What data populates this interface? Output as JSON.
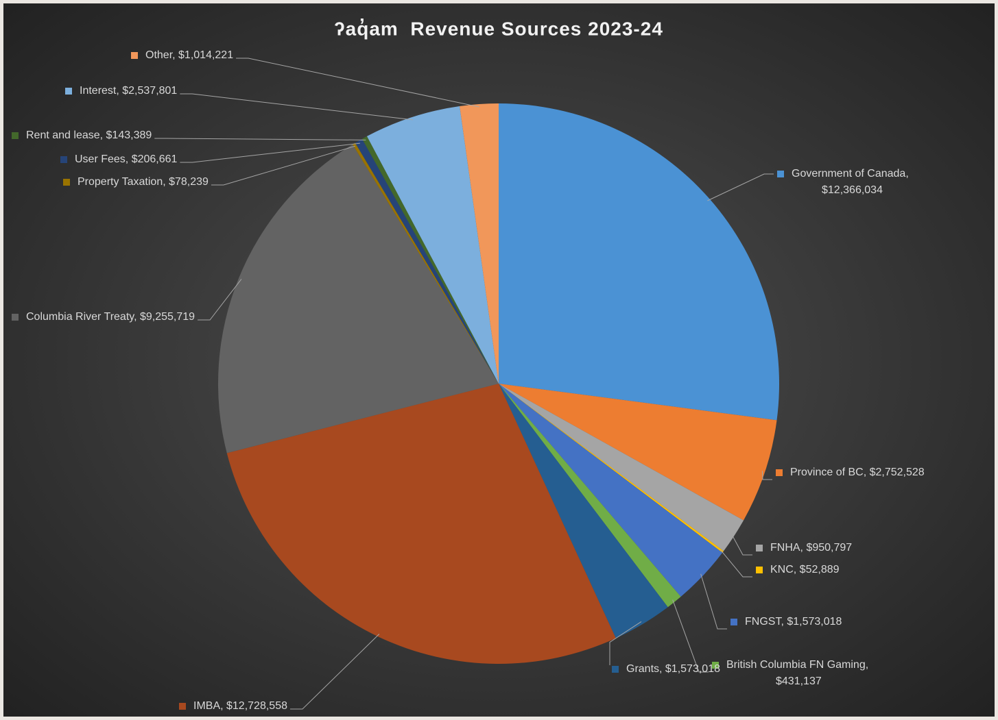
{
  "chart_data": {
    "type": "pie",
    "title": "ʔaq̓am  Revenue Sources 2023-24",
    "values": [
      12366034,
      2752528,
      950797,
      52889,
      1573018,
      431137,
      1573018,
      12728558,
      9255719,
      78239,
      206661,
      143389,
      2537801,
      1014221
    ],
    "value_labels": [
      "Government of Canada, $12,366,034",
      "Province of BC, $2,752,528",
      "FNHA, $950,797",
      "KNC, $52,889",
      "FNGST, $1,573,018",
      "British Columbia FN Gaming, $431,137",
      "Grants, $1,573,018",
      "IMBA, $12,728,558",
      "Columbia River Treaty, $9,255,719",
      "Property Taxation, $78,239",
      "User Fees, $206,661",
      "Rent and lease, $143,389",
      "Interest, $2,537,801",
      "Other, $1,014,221"
    ],
    "colors": [
      "#4b92d4",
      "#ed7d31",
      "#a5a5a5",
      "#ffc000",
      "#4472c4",
      "#70ad47",
      "#255e91",
      "#a8491f",
      "#636363",
      "#997300",
      "#264478",
      "#43682b",
      "#7cafdd",
      "#f1975a"
    ]
  }
}
